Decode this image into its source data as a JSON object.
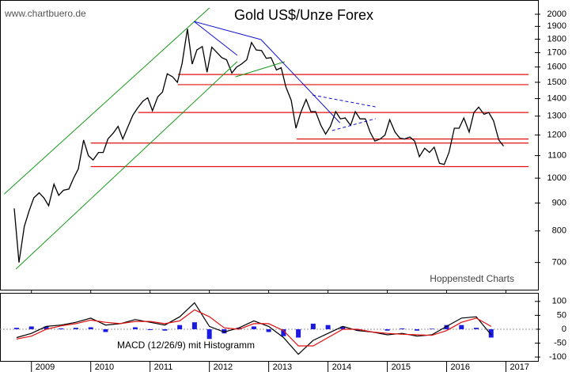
{
  "chart_data": [
    {
      "type": "line",
      "title": "Gold US$/Unze Forex",
      "source": "www.chartbuero.de",
      "credit": "Hoppenstedt Charts",
      "color": "#000000",
      "log_scale": true,
      "x": [
        2008.71,
        2008.79,
        2008.88,
        2008.96,
        2009.04,
        2009.13,
        2009.21,
        2009.29,
        2009.38,
        2009.46,
        2009.54,
        2009.63,
        2009.71,
        2009.79,
        2009.88,
        2009.96,
        2010.04,
        2010.13,
        2010.21,
        2010.29,
        2010.38,
        2010.46,
        2010.54,
        2010.63,
        2010.71,
        2010.79,
        2010.88,
        2010.96,
        2011.04,
        2011.13,
        2011.21,
        2011.29,
        2011.38,
        2011.46,
        2011.54,
        2011.63,
        2011.71,
        2011.79,
        2011.88,
        2011.96,
        2012.04,
        2012.13,
        2012.21,
        2012.29,
        2012.38,
        2012.46,
        2012.54,
        2012.63,
        2012.71,
        2012.79,
        2012.88,
        2012.96,
        2013.04,
        2013.13,
        2013.21,
        2013.29,
        2013.38,
        2013.46,
        2013.54,
        2013.63,
        2013.71,
        2013.79,
        2013.88,
        2013.96,
        2014.04,
        2014.13,
        2014.21,
        2014.29,
        2014.38,
        2014.46,
        2014.54,
        2014.63,
        2014.71,
        2014.79,
        2014.88,
        2014.96,
        2015.04,
        2015.13,
        2015.21,
        2015.29,
        2015.38,
        2015.46,
        2015.54,
        2015.63,
        2015.71,
        2015.79,
        2015.88,
        2015.96,
        2016.04,
        2016.13,
        2016.21,
        2016.29,
        2016.38,
        2016.46,
        2016.54,
        2016.63,
        2016.71,
        2016.79,
        2016.88,
        2016.96
      ],
      "values": [
        880,
        700,
        815,
        870,
        920,
        940,
        920,
        890,
        975,
        930,
        950,
        955,
        1000,
        1040,
        1175,
        1100,
        1080,
        1115,
        1115,
        1180,
        1210,
        1245,
        1180,
        1245,
        1305,
        1345,
        1385,
        1405,
        1330,
        1410,
        1440,
        1555,
        1535,
        1500,
        1625,
        1880,
        1620,
        1720,
        1745,
        1565,
        1740,
        1700,
        1665,
        1650,
        1560,
        1600,
        1620,
        1650,
        1775,
        1720,
        1715,
        1660,
        1665,
        1580,
        1595,
        1470,
        1390,
        1235,
        1320,
        1395,
        1325,
        1325,
        1250,
        1205,
        1245,
        1325,
        1285,
        1290,
        1250,
        1325,
        1285,
        1285,
        1215,
        1170,
        1180,
        1200,
        1280,
        1215,
        1185,
        1180,
        1190,
        1170,
        1095,
        1135,
        1115,
        1140,
        1065,
        1060,
        1115,
        1235,
        1235,
        1290,
        1215,
        1320,
        1350,
        1310,
        1320,
        1275,
        1175,
        1145
      ],
      "xlim": [
        2008.47,
        2017.54
      ],
      "ylim": [
        624,
        2089
      ],
      "yticks": [
        700,
        800,
        900,
        1000,
        1100,
        1200,
        1300,
        1400,
        1500,
        1600,
        1700,
        1800,
        1900,
        2000
      ],
      "levels": [
        {
          "value": 1550,
          "from": 2011.47,
          "color": "#e01010"
        },
        {
          "value": 1485,
          "from": 2011.47,
          "color": "#e01010"
        },
        {
          "value": 1320,
          "from": 2010.8,
          "color": "#e01010"
        },
        {
          "value": 1180,
          "from": 2013.47,
          "color": "#e01010"
        },
        {
          "value": 1160,
          "from": 2010.0,
          "color": "#e01010"
        },
        {
          "value": 1050,
          "from": 2010.0,
          "color": "#e01010"
        }
      ],
      "trendlines": [
        {
          "color": "#1a9a1a",
          "dash": false,
          "x": [
            2008.74,
            2012.47
          ],
          "values": [
            681,
            1637
          ]
        },
        {
          "color": "#1a9a1a",
          "dash": false,
          "x": [
            2008.54,
            2012.0
          ],
          "values": [
            935,
            2054
          ]
        },
        {
          "color": "#1a9a1a",
          "dash": false,
          "x": [
            2012.44,
            2013.27
          ],
          "values": [
            1535,
            1636
          ]
        },
        {
          "color": "#1010d0",
          "dash": false,
          "x": [
            2011.74,
            2012.87
          ],
          "values": [
            1940,
            1797
          ]
        },
        {
          "color": "#1010d0",
          "dash": false,
          "x": [
            2011.74,
            2012.47
          ],
          "values": [
            1940,
            1681
          ]
        },
        {
          "color": "#1010d0",
          "dash": false,
          "x": [
            2012.87,
            2014.2
          ],
          "values": [
            1797,
            1264
          ]
        },
        {
          "color": "#1010d0",
          "dash": true,
          "x": [
            2013.74,
            2014.8
          ],
          "values": [
            1421,
            1352
          ]
        },
        {
          "color": "#1010d0",
          "dash": true,
          "x": [
            2014.07,
            2014.8
          ],
          "values": [
            1223,
            1286
          ]
        }
      ]
    },
    {
      "type": "macd",
      "title": "MACD (12/26/9) mit Histogramm",
      "x": [
        2008.75,
        2009.0,
        2009.25,
        2009.5,
        2009.75,
        2010.0,
        2010.25,
        2010.5,
        2010.75,
        2011.0,
        2011.25,
        2011.5,
        2011.75,
        2012.0,
        2012.25,
        2012.5,
        2012.75,
        2013.0,
        2013.25,
        2013.5,
        2013.75,
        2014.0,
        2014.25,
        2014.5,
        2014.75,
        2015.0,
        2015.25,
        2015.5,
        2015.75,
        2016.0,
        2016.25,
        2016.5,
        2016.75
      ],
      "lines": [
        {
          "color": "#000000",
          "values": [
            -30,
            -15,
            10,
            15,
            25,
            40,
            15,
            20,
            35,
            25,
            15,
            45,
            95,
            10,
            -10,
            5,
            30,
            10,
            -30,
            -90,
            -40,
            -15,
            10,
            -5,
            -10,
            -20,
            -15,
            -25,
            -20,
            10,
            40,
            45,
            -20
          ]
        },
        {
          "color": "#e01010",
          "values": [
            -35,
            -25,
            0,
            12,
            20,
            33,
            25,
            20,
            28,
            28,
            20,
            30,
            70,
            45,
            5,
            0,
            20,
            20,
            -5,
            -60,
            -60,
            -30,
            0,
            0,
            -10,
            -15,
            -18,
            -20,
            -22,
            -5,
            25,
            40,
            10
          ]
        }
      ],
      "bars": {
        "color": "#1a1ae0",
        "values": [
          5,
          10,
          10,
          3,
          5,
          7,
          -10,
          0,
          7,
          -3,
          -5,
          15,
          25,
          -35,
          -15,
          5,
          10,
          -10,
          -25,
          -30,
          20,
          15,
          10,
          -5,
          0,
          -5,
          3,
          -5,
          2,
          15,
          15,
          5,
          -30
        ]
      },
      "xlim": [
        2008.47,
        2017.54
      ],
      "ylim": [
        -114,
        128
      ],
      "yticks": [
        100,
        50,
        0,
        -50,
        -100
      ],
      "xticks": [
        2009,
        2010,
        2011,
        2012,
        2013,
        2014,
        2015,
        2016,
        2017
      ]
    }
  ]
}
